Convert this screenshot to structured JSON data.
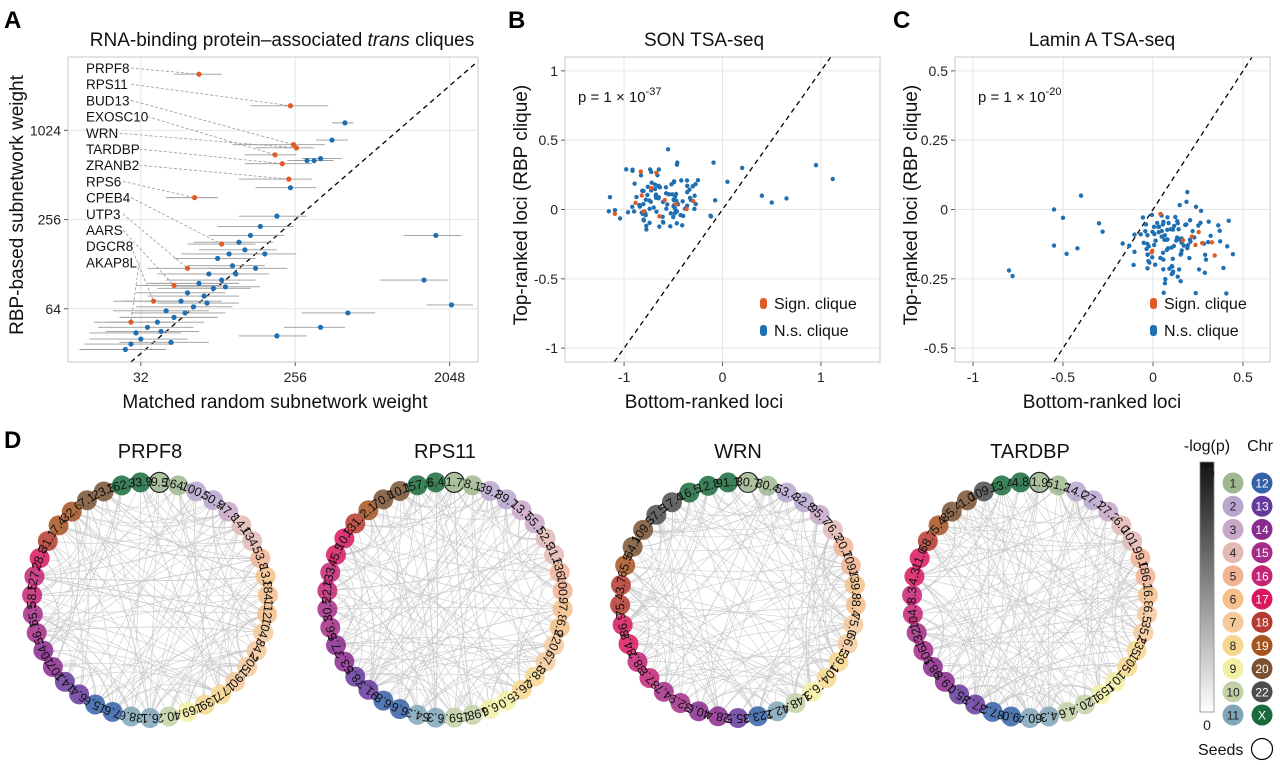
{
  "panels": {
    "A": {
      "letter": "A"
    },
    "B": {
      "letter": "B"
    },
    "C": {
      "letter": "C"
    },
    "D": {
      "letter": "D"
    }
  },
  "colors": {
    "significant": "#e05a24",
    "not_significant": "#1f6fb3",
    "errorbar": "#9a9a9a",
    "network_edge": "#c8c8c8"
  },
  "chart_data": [
    {
      "id": "A",
      "type": "scatter",
      "title_prefix": "RNA-binding protein–associated ",
      "title_italic": "trans",
      "title_suffix": " cliques",
      "xlabel": "Matched random subnetwork weight",
      "ylabel": "RBP-based subnetwork weight",
      "x_scale": "log2",
      "y_scale": "log2",
      "xlim": [
        12,
        3000
      ],
      "ylim": [
        28,
        3200
      ],
      "x_ticks": [
        32,
        256,
        2048
      ],
      "y_ticks": [
        64,
        256,
        1024
      ],
      "grid": true,
      "diagonal": "y=x dashed",
      "labels": [
        "PRPF8",
        "RPS11",
        "BUD13",
        "EXOSC10",
        "WRN",
        "TARDBP",
        "ZRANB2",
        "RPS6",
        "CPEB4",
        "UTP3",
        "AARS",
        "DGCR8",
        "AKAP8L"
      ],
      "labeled_points": [
        {
          "gene": "PRPF8",
          "x": 70,
          "y": 2450,
          "lo": 50,
          "hi": 95
        },
        {
          "gene": "RPS11",
          "x": 240,
          "y": 1500,
          "lo": 140,
          "hi": 400
        },
        {
          "gene": "BUD13",
          "x": 250,
          "y": 820,
          "lo": 110,
          "hi": 380
        },
        {
          "gene": "EXOSC10",
          "x": 195,
          "y": 700,
          "lo": 130,
          "hi": 260
        },
        {
          "gene": "WRN",
          "x": 260,
          "y": 780,
          "lo": 150,
          "hi": 330
        },
        {
          "gene": "TARDBP",
          "x": 215,
          "y": 610,
          "lo": 130,
          "hi": 320
        },
        {
          "gene": "ZRANB2",
          "x": 235,
          "y": 480,
          "lo": 120,
          "hi": 320
        },
        {
          "gene": "RPS6",
          "x": 66,
          "y": 360,
          "lo": 45,
          "hi": 90
        },
        {
          "gene": "CPEB4",
          "x": 95,
          "y": 175,
          "lo": 60,
          "hi": 150
        },
        {
          "gene": "UTP3",
          "x": 60,
          "y": 120,
          "lo": 35,
          "hi": 110
        },
        {
          "gene": "AARS",
          "x": 50,
          "y": 92,
          "lo": 30,
          "hi": 95
        },
        {
          "gene": "DGCR8",
          "x": 38,
          "y": 72,
          "lo": 22,
          "hi": 70
        },
        {
          "gene": "AKAP8L",
          "x": 28,
          "y": 52,
          "lo": 17,
          "hi": 50
        }
      ],
      "unlabeled_points": [
        {
          "x": 500,
          "y": 1150,
          "lo": 420,
          "hi": 560
        },
        {
          "x": 420,
          "y": 880,
          "lo": 340,
          "hi": 520
        },
        {
          "x": 360,
          "y": 660,
          "lo": 280,
          "hi": 480
        },
        {
          "x": 330,
          "y": 640,
          "lo": 250,
          "hi": 430
        },
        {
          "x": 300,
          "y": 640,
          "lo": 230,
          "hi": 400
        },
        {
          "x": 240,
          "y": 420,
          "lo": 150,
          "hi": 340
        },
        {
          "x": 200,
          "y": 270,
          "lo": 120,
          "hi": 300
        },
        {
          "x": 1700,
          "y": 200,
          "lo": 1100,
          "hi": 2400
        },
        {
          "x": 1450,
          "y": 100,
          "lo": 800,
          "hi": 2000
        },
        {
          "x": 2100,
          "y": 68,
          "lo": 1500,
          "hi": 2800
        },
        {
          "x": 520,
          "y": 60,
          "lo": 280,
          "hi": 750
        },
        {
          "x": 360,
          "y": 48,
          "lo": 220,
          "hi": 500
        },
        {
          "x": 200,
          "y": 42,
          "lo": 120,
          "hi": 300
        },
        {
          "x": 140,
          "y": 200,
          "lo": 80,
          "hi": 220
        },
        {
          "x": 160,
          "y": 230,
          "lo": 90,
          "hi": 250
        },
        {
          "x": 120,
          "y": 180,
          "lo": 65,
          "hi": 190
        },
        {
          "x": 105,
          "y": 150,
          "lo": 55,
          "hi": 170
        },
        {
          "x": 90,
          "y": 140,
          "lo": 50,
          "hi": 150
        },
        {
          "x": 110,
          "y": 125,
          "lo": 60,
          "hi": 170
        },
        {
          "x": 80,
          "y": 110,
          "lo": 40,
          "hi": 130
        },
        {
          "x": 95,
          "y": 100,
          "lo": 45,
          "hi": 150
        },
        {
          "x": 70,
          "y": 95,
          "lo": 35,
          "hi": 120
        },
        {
          "x": 85,
          "y": 88,
          "lo": 40,
          "hi": 140
        },
        {
          "x": 60,
          "y": 82,
          "lo": 30,
          "hi": 100
        },
        {
          "x": 75,
          "y": 78,
          "lo": 35,
          "hi": 120
        },
        {
          "x": 55,
          "y": 72,
          "lo": 25,
          "hi": 95
        },
        {
          "x": 65,
          "y": 66,
          "lo": 30,
          "hi": 110
        },
        {
          "x": 45,
          "y": 62,
          "lo": 22,
          "hi": 80
        },
        {
          "x": 50,
          "y": 56,
          "lo": 24,
          "hi": 90
        },
        {
          "x": 40,
          "y": 52,
          "lo": 20,
          "hi": 75
        },
        {
          "x": 35,
          "y": 48,
          "lo": 18,
          "hi": 65
        },
        {
          "x": 42,
          "y": 45,
          "lo": 20,
          "hi": 70
        },
        {
          "x": 30,
          "y": 44,
          "lo": 16,
          "hi": 55
        },
        {
          "x": 32,
          "y": 40,
          "lo": 16,
          "hi": 60
        },
        {
          "x": 28,
          "y": 37,
          "lo": 15,
          "hi": 50
        },
        {
          "x": 26,
          "y": 34,
          "lo": 14,
          "hi": 45
        },
        {
          "x": 130,
          "y": 160,
          "lo": 70,
          "hi": 200
        },
        {
          "x": 115,
          "y": 110,
          "lo": 60,
          "hi": 180
        },
        {
          "x": 100,
          "y": 90,
          "lo": 50,
          "hi": 160
        },
        {
          "x": 78,
          "y": 70,
          "lo": 40,
          "hi": 120
        },
        {
          "x": 150,
          "y": 120,
          "lo": 80,
          "hi": 230
        },
        {
          "x": 170,
          "y": 150,
          "lo": 90,
          "hi": 260
        },
        {
          "x": 58,
          "y": 60,
          "lo": 28,
          "hi": 100
        },
        {
          "x": 48,
          "y": 38,
          "lo": 24,
          "hi": 80
        }
      ]
    },
    {
      "id": "B",
      "type": "scatter",
      "title": "SON TSA-seq",
      "xlabel": "Bottom-ranked loci",
      "ylabel": "Top-ranked loci (RBP clique)",
      "xlim": [
        -1.6,
        1.6
      ],
      "ylim": [
        -1.1,
        1.1
      ],
      "x_ticks": [
        -1,
        0,
        1
      ],
      "y_ticks": [
        -1,
        -0.5,
        0,
        0.5,
        1
      ],
      "grid": true,
      "diagonal": "y=x dashed",
      "annotation": {
        "base": "p = 1 × 10",
        "exponent": "-37"
      },
      "legend": {
        "position": "bottom-right",
        "entries": [
          "Sign. clique",
          "N.s. clique"
        ]
      },
      "seed": 11,
      "cluster": {
        "n_ns": 110,
        "n_sig": 12,
        "x_center": -0.6,
        "x_sd": 0.22,
        "y_center": 0.08,
        "y_sd": 0.13
      },
      "outliers": [
        {
          "x": 0.05,
          "y": 0.2
        },
        {
          "x": 0.4,
          "y": 0.1
        },
        {
          "x": 0.5,
          "y": 0.05
        },
        {
          "x": 0.95,
          "y": 0.32
        },
        {
          "x": 1.12,
          "y": 0.22
        },
        {
          "x": 0.2,
          "y": 0.3
        },
        {
          "x": 0.65,
          "y": 0.08
        }
      ]
    },
    {
      "id": "C",
      "type": "scatter",
      "title": "Lamin A TSA-seq",
      "xlabel": "Bottom-ranked loci",
      "ylabel": "Top-ranked loci (RBP clique)",
      "xlim": [
        -1.1,
        0.65
      ],
      "ylim": [
        -0.55,
        0.55
      ],
      "x_ticks": [
        -1,
        -0.5,
        0,
        0.5
      ],
      "y_ticks": [
        -0.5,
        -0.25,
        0,
        0.25,
        0.5
      ],
      "grid": true,
      "diagonal": "y=x dashed",
      "annotation": {
        "base": "p = 1 × 10",
        "exponent": "-20"
      },
      "legend": {
        "position": "bottom-right",
        "entries": [
          "Sign. clique",
          "N.s. clique"
        ]
      },
      "seed": 29,
      "cluster": {
        "n_ns": 115,
        "n_sig": 10,
        "x_center": 0.1,
        "x_sd": 0.13,
        "y_center": -0.12,
        "y_sd": 0.07
      },
      "outliers": [
        {
          "x": -0.8,
          "y": -0.22
        },
        {
          "x": -0.78,
          "y": -0.24
        },
        {
          "x": -0.55,
          "y": 0.0
        },
        {
          "x": -0.55,
          "y": -0.13
        },
        {
          "x": -0.48,
          "y": -0.16
        },
        {
          "x": -0.42,
          "y": -0.14
        },
        {
          "x": -0.4,
          "y": 0.05
        },
        {
          "x": -0.3,
          "y": -0.05
        },
        {
          "x": -0.28,
          "y": -0.08
        },
        {
          "x": -0.5,
          "y": -0.03
        }
      ]
    }
  ],
  "circos": {
    "legend": {
      "colorbar_title": "-log(p)",
      "colorbar_max": "10",
      "colorbar_min": "0",
      "chr_title": "Chr",
      "seeds_label": "Seeds",
      "chromosomes": [
        {
          "label": "1",
          "color": "#9fb88f"
        },
        {
          "label": "2",
          "color": "#b9a6cf"
        },
        {
          "label": "3",
          "color": "#c9a7c8"
        },
        {
          "label": "4",
          "color": "#e2b9b3"
        },
        {
          "label": "5",
          "color": "#f1b394"
        },
        {
          "label": "6",
          "color": "#f5c089"
        },
        {
          "label": "7",
          "color": "#f6c99a"
        },
        {
          "label": "8",
          "color": "#f7d78d"
        },
        {
          "label": "9",
          "color": "#f4f0a3"
        },
        {
          "label": "10",
          "color": "#c3d1a6"
        },
        {
          "label": "11",
          "color": "#80a6b7"
        },
        {
          "label": "12",
          "color": "#3461a8"
        },
        {
          "label": "13",
          "color": "#663a9c"
        },
        {
          "label": "14",
          "color": "#8a2a8f"
        },
        {
          "label": "15",
          "color": "#a52c87"
        },
        {
          "label": "16",
          "color": "#c42376"
        },
        {
          "label": "17",
          "color": "#d9185f"
        },
        {
          "label": "18",
          "color": "#b53a2f"
        },
        {
          "label": "19",
          "color": "#a6541e"
        },
        {
          "label": "20",
          "color": "#7a5231"
        },
        {
          "label": "22",
          "color": "#4d4d4d"
        },
        {
          "label": "X",
          "color": "#1a6b3c"
        }
      ]
    },
    "plots": [
      {
        "title": "PRPF8",
        "seed_index": 0,
        "labels": [
          "9.5",
          "164.0",
          "100.8",
          "50.5",
          "47.8",
          "14.0",
          "134.7",
          "53.8",
          "13.8",
          "184.3",
          "112.3",
          "104.6",
          "84.2",
          "205.3",
          "190.8",
          "177.6",
          "139.8",
          "169.9",
          "40.2",
          "6.1",
          "38.6",
          "7.6",
          "15.6",
          "6.4",
          "14.2",
          "107.9",
          "104.1",
          "56.1",
          "65.5",
          "58.5",
          "127.2",
          "28.8",
          "31.1",
          "7.4",
          "32.6",
          "7.1",
          "23.3",
          "162.7",
          "33.9"
        ],
        "chr_idx": [
          0,
          0,
          1,
          1,
          2,
          3,
          3,
          4,
          5,
          5,
          5,
          6,
          6,
          6,
          6,
          7,
          7,
          8,
          9,
          10,
          10,
          11,
          11,
          12,
          12,
          13,
          13,
          14,
          14,
          15,
          15,
          16,
          17,
          18,
          18,
          19,
          19,
          21,
          21
        ]
      },
      {
        "title": "RPS11",
        "seed_index": 0,
        "labels": [
          "1.7",
          "8.1",
          "39.2",
          "89.7",
          "13.7",
          "55.1",
          "52.9",
          "31.6",
          "136.0",
          "100.2",
          "97.8",
          "6.9",
          "220.8",
          "67.8",
          "38.4",
          "26.8",
          "5.0",
          "6.6",
          "198.7",
          "159.7",
          "6.3",
          "54.3",
          "6.6",
          "6.8",
          "91.3",
          "78.8",
          "53.3",
          "77.9",
          "56.1",
          "30.5",
          "22.4",
          "133.9",
          "45.5",
          "10.8",
          "131.7",
          "2.1",
          "70.8",
          "10.1",
          "157.9",
          "6.4"
        ],
        "chr_idx": [
          0,
          0,
          1,
          1,
          2,
          2,
          3,
          3,
          4,
          4,
          5,
          5,
          6,
          6,
          7,
          7,
          8,
          8,
          9,
          9,
          10,
          10,
          11,
          11,
          12,
          12,
          13,
          13,
          14,
          14,
          15,
          15,
          16,
          16,
          17,
          18,
          19,
          19,
          21,
          21
        ]
      },
      {
        "title": "WRN",
        "seed_index": 0,
        "labels": [
          "30.7",
          "30.4",
          "53.4",
          "32.8",
          "95.7",
          "76.3",
          "20.7",
          "109.6",
          "139.9",
          "88.4",
          "75.0",
          "66.5",
          "39.1",
          "104.7",
          "6.3",
          "148.6",
          "42.2",
          "123.1",
          "35.5",
          "28.4",
          "40.6",
          "32.9",
          "4.7",
          "87.8",
          "38.2",
          "84.8",
          "86.9",
          "75.4",
          "3.7",
          "65.5",
          "64.1",
          "109.3",
          "57.5",
          "17.4",
          "16.5",
          "12.8",
          "91.1"
        ],
        "chr_idx": [
          0,
          0,
          1,
          1,
          2,
          3,
          4,
          4,
          5,
          5,
          6,
          6,
          7,
          7,
          8,
          9,
          10,
          11,
          12,
          13,
          13,
          14,
          14,
          15,
          15,
          16,
          16,
          17,
          17,
          18,
          19,
          19,
          20,
          20,
          21,
          21,
          21
        ]
      },
      {
        "title": "TARDBP",
        "seed_index": 0,
        "labels": [
          "1.9",
          "51.2",
          "14.0",
          "27.1",
          "27.2",
          "6.0",
          "101.7",
          "99.0",
          "186.7",
          "16.8",
          "6.5",
          "35.5",
          "235.3",
          "105.4",
          "10.0",
          "159.2",
          "120.2",
          "4.6",
          "4.3",
          "60.4",
          "9.0",
          "87.2",
          "37.1",
          "35.0",
          "19.8",
          "98.9",
          "106.5",
          "132.9",
          "104.8",
          "8.3",
          "4.3",
          "11.0",
          "68.7",
          "5.4",
          "85.4",
          "1.0",
          "109.2",
          "13.4",
          "4.8"
        ],
        "chr_idx": [
          0,
          0,
          1,
          1,
          2,
          3,
          3,
          4,
          4,
          5,
          6,
          6,
          7,
          7,
          8,
          8,
          9,
          9,
          10,
          10,
          11,
          11,
          12,
          12,
          13,
          13,
          14,
          14,
          15,
          15,
          16,
          16,
          17,
          18,
          19,
          19,
          20,
          21,
          21
        ]
      }
    ]
  }
}
